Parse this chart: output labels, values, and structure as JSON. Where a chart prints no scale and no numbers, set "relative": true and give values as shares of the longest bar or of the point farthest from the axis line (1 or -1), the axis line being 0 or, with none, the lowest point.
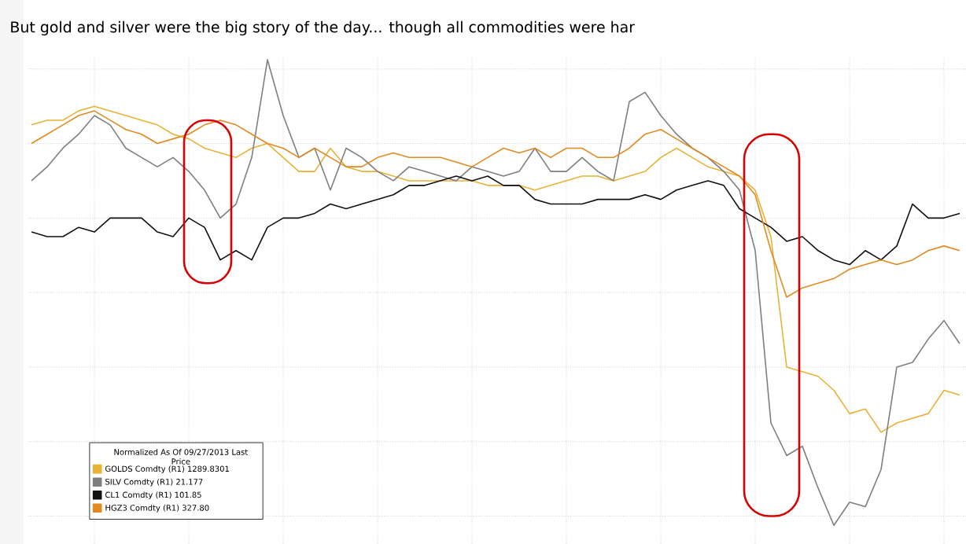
{
  "chart_data": {
    "type": "line",
    "relative": true,
    "title": "But gold and silver were the big story of the day... though all commodities were har",
    "legend_title": "Normalized As Of 09/27/2013 Last Price",
    "legend": "bottom left",
    "grid": true,
    "categories": [
      null,
      null,
      null,
      null,
      null,
      null,
      null,
      null,
      null,
      null,
      null,
      null,
      null,
      null,
      null,
      null,
      null,
      null,
      null,
      null,
      null,
      null,
      null,
      null,
      null,
      null,
      null,
      null,
      null,
      null,
      null,
      null,
      null,
      null,
      null,
      null,
      null,
      null,
      null,
      null,
      null,
      null,
      null,
      null,
      null,
      null,
      null,
      null,
      null,
      null,
      null,
      null,
      null,
      null,
      null,
      null,
      null,
      null,
      null,
      null
    ],
    "series": [
      {
        "name": "GOLDS Comdty (R1) 1289.8301",
        "color": "#e8b234",
        "values": [
          0.86,
          0.87,
          0.87,
          0.89,
          0.9,
          0.89,
          0.88,
          0.87,
          0.86,
          0.84,
          0.83,
          0.81,
          0.8,
          0.79,
          0.81,
          0.82,
          0.79,
          0.76,
          0.76,
          0.81,
          0.77,
          0.76,
          0.76,
          0.75,
          0.74,
          0.74,
          0.74,
          0.74,
          0.74,
          0.73,
          0.73,
          0.73,
          0.72,
          0.73,
          0.74,
          0.75,
          0.75,
          0.74,
          0.75,
          0.76,
          0.79,
          0.81,
          0.79,
          0.77,
          0.76,
          0.75,
          0.72,
          0.62,
          0.34,
          0.33,
          0.32,
          0.29,
          0.24,
          0.25,
          0.2,
          0.22,
          0.23,
          0.24,
          0.29,
          0.28
        ]
      },
      {
        "name": "SILV Comdty (R1) 21.177",
        "color": "#7f7f7f",
        "values": [
          0.74,
          0.77,
          0.81,
          0.84,
          0.88,
          0.86,
          0.81,
          0.79,
          0.77,
          0.79,
          0.76,
          0.72,
          0.66,
          0.69,
          0.79,
          1,
          0.88,
          0.79,
          0.81,
          0.72,
          0.81,
          0.79,
          0.76,
          0.74,
          0.77,
          0.76,
          0.75,
          0.74,
          0.77,
          0.76,
          0.75,
          0.76,
          0.81,
          0.76,
          0.76,
          0.79,
          0.76,
          0.74,
          0.91,
          0.93,
          0.88,
          0.84,
          0.81,
          0.79,
          0.76,
          0.72,
          0.59,
          0.22,
          0.15,
          0.17,
          0.08,
          0,
          0.05,
          0.04,
          0.12,
          0.34,
          0.35,
          0.4,
          0.44,
          0.39
        ]
      },
      {
        "name": "CL1 Comdty (R1) 101.85",
        "color": "#111111",
        "values": [
          0.63,
          0.62,
          0.62,
          0.64,
          0.63,
          0.66,
          0.66,
          0.66,
          0.63,
          0.62,
          0.66,
          0.64,
          0.57,
          0.59,
          0.57,
          0.64,
          0.66,
          0.66,
          0.67,
          0.69,
          0.68,
          0.69,
          0.7,
          0.71,
          0.73,
          0.73,
          0.74,
          0.75,
          0.74,
          0.75,
          0.73,
          0.73,
          0.7,
          0.69,
          0.69,
          0.69,
          0.7,
          0.7,
          0.7,
          0.71,
          0.7,
          0.72,
          0.73,
          0.74,
          0.73,
          0.68,
          0.66,
          0.64,
          0.61,
          0.62,
          0.59,
          0.57,
          0.56,
          0.59,
          0.57,
          0.6,
          0.69,
          0.66,
          0.66,
          0.67
        ]
      },
      {
        "name": "HGZ3 Comdty (R1) 327.80",
        "color": "#e08a20",
        "values": [
          0.82,
          0.84,
          0.86,
          0.88,
          0.89,
          0.87,
          0.85,
          0.84,
          0.82,
          0.83,
          0.84,
          0.86,
          0.87,
          0.86,
          0.84,
          0.82,
          0.81,
          0.79,
          0.81,
          0.79,
          0.77,
          0.77,
          0.79,
          0.8,
          0.79,
          0.79,
          0.79,
          0.78,
          0.77,
          0.79,
          0.81,
          0.8,
          0.81,
          0.79,
          0.81,
          0.81,
          0.79,
          0.79,
          0.81,
          0.84,
          0.85,
          0.83,
          0.81,
          0.79,
          0.77,
          0.75,
          0.71,
          0.59,
          0.49,
          0.51,
          0.52,
          0.53,
          0.55,
          0.56,
          0.57,
          0.56,
          0.57,
          0.59,
          0.6,
          0.59
        ]
      }
    ]
  }
}
